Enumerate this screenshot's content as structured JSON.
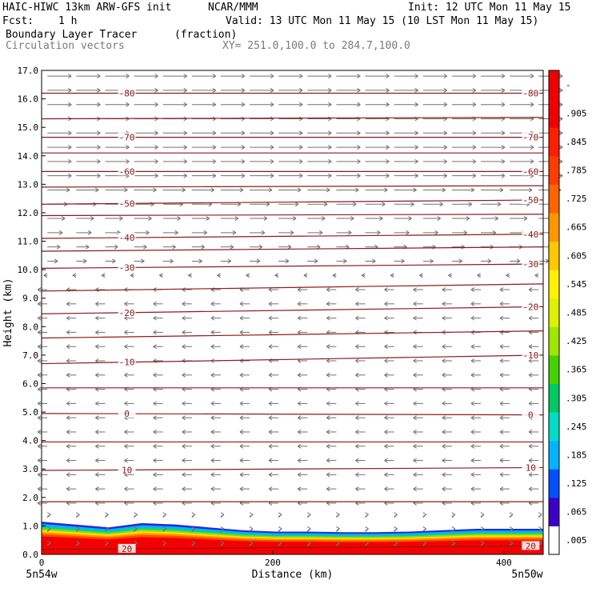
{
  "header": {
    "title_left": "HAIC-HIWC 13km ARW-GFS init",
    "org": "NCAR/MMM",
    "init": "Init: 12 UTC Mon 11 May 15",
    "fcst_label": "Fcst:",
    "fcst_value": "1 h",
    "valid": "Valid: 13 UTC Mon 11 May 15 (10 LST Mon 11 May 15)",
    "field_name": "Boundary Layer Tracer",
    "field_units": "(fraction)",
    "vector_label": "Circulation vectors",
    "xy_label": "XY= 251.0,100.0 to 284.7,100.0"
  },
  "chart_data": {
    "type": "heatmap",
    "xlabel": "Distance (km)",
    "ylabel": "Height (km)",
    "xlim": [
      0,
      434
    ],
    "ylim": [
      0,
      17
    ],
    "x_ticks": [
      0,
      200,
      400
    ],
    "y_ticks": [
      "0.0",
      "1.0",
      "2.0",
      "3.0",
      "4.0",
      "5.0",
      "6.0",
      "7.0",
      "8.0",
      "9.0",
      "10.0",
      "11.0",
      "12.0",
      "13.0",
      "14.0",
      "15.0",
      "16.0",
      "17.0"
    ],
    "x_end_labels": {
      "left": "5n54w",
      "right": "5n50w"
    },
    "colorbar": {
      "ticks": [
        ".005",
        ".065",
        ".125",
        ".185",
        ".245",
        ".305",
        ".365",
        ".425",
        ".485",
        ".545",
        ".605",
        ".665",
        ".725",
        ".785",
        ".845",
        ".905",
        "-"
      ],
      "colors": [
        "#ffffff",
        "#3c00c8",
        "#0050ff",
        "#00b4ff",
        "#00dcc8",
        "#00c864",
        "#46d200",
        "#a0e600",
        "#dcf000",
        "#fff000",
        "#ffc800",
        "#ff9600",
        "#ff6400",
        "#ff3c00",
        "#ff1e00",
        "#f00000",
        "#f00000"
      ]
    },
    "temperature_contours": {
      "color": "#8b1a1a",
      "lines": [
        {
          "label": "20",
          "left_y": 0.18,
          "right_y": 0.3
        },
        {
          "label": "",
          "left_y": 1.85,
          "right_y": 1.85
        },
        {
          "label": "10",
          "left_y": 2.95,
          "right_y": 3.05
        },
        {
          "label": "",
          "left_y": 3.95,
          "right_y": 3.95
        },
        {
          "label": "0",
          "left_y": 4.95,
          "right_y": 4.9
        },
        {
          "label": "",
          "left_y": 5.85,
          "right_y": 5.85
        },
        {
          "label": "-10",
          "left_y": 6.7,
          "right_y": 7.0
        },
        {
          "label": "",
          "left_y": 7.6,
          "right_y": 7.85
        },
        {
          "label": "-20",
          "left_y": 8.45,
          "right_y": 8.7
        },
        {
          "label": "",
          "left_y": 9.25,
          "right_y": 9.5
        },
        {
          "label": "-30",
          "left_y": 10.05,
          "right_y": 10.2
        },
        {
          "label": "",
          "left_y": 10.65,
          "right_y": 10.8
        },
        {
          "label": "-40",
          "left_y": 11.1,
          "right_y": 11.25
        },
        {
          "label": "",
          "left_y": 11.9,
          "right_y": 11.95
        },
        {
          "label": "-50",
          "left_y": 12.3,
          "right_y": 12.45
        },
        {
          "label": "",
          "left_y": 12.9,
          "right_y": 12.95
        },
        {
          "label": "-60",
          "left_y": 13.45,
          "right_y": 13.45
        },
        {
          "label": "",
          "left_y": 14.1,
          "right_y": 14.1
        },
        {
          "label": "-70",
          "left_y": 14.65,
          "right_y": 14.65
        },
        {
          "label": "",
          "left_y": 15.3,
          "right_y": 15.35
        },
        {
          "label": "-80",
          "left_y": 16.2,
          "right_y": 16.2
        }
      ]
    },
    "boundary_layer_top_km": [
      1.15,
      1.05,
      0.95,
      1.1,
      1.05,
      0.95,
      0.85,
      0.8,
      0.8,
      0.78,
      0.78,
      0.8,
      0.85,
      0.9,
      0.9,
      0.9
    ]
  }
}
